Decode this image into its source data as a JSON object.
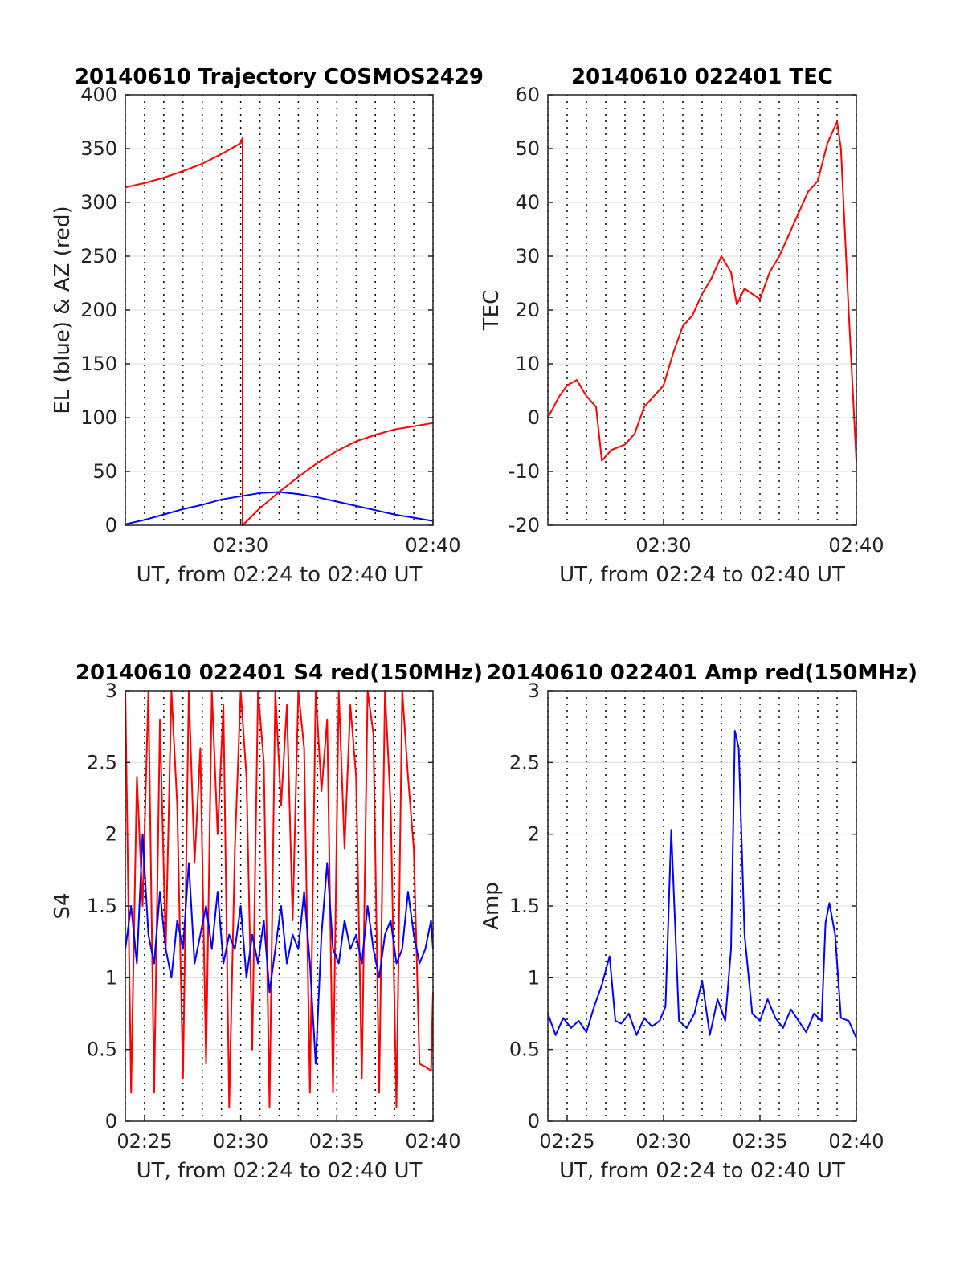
{
  "chart_data": [
    {
      "type": "line",
      "title": "20140610 Trajectory COSMOS2429",
      "xlabel": "UT, from 02:24 to 02:40 UT",
      "ylabel": "EL (blue) & AZ (red)",
      "x_unit": "minutes after 02:00 UT",
      "xlim": [
        24,
        40
      ],
      "ylim": [
        0,
        400
      ],
      "xtick_values": [
        30,
        40
      ],
      "xtick_labels": [
        "02:30",
        "02:40"
      ],
      "ytick_values": [
        0,
        50,
        100,
        150,
        200,
        250,
        300,
        350,
        400
      ],
      "ytick_labels": [
        "0",
        "50",
        "100",
        "150",
        "200",
        "250",
        "300",
        "350",
        "400"
      ],
      "grid": true,
      "series": [
        {
          "color": "#ff0000",
          "x": [
            24,
            25,
            26,
            27,
            28,
            29,
            30,
            30.1,
            30.1,
            31,
            32,
            33,
            34,
            35,
            36,
            37,
            38,
            39,
            40
          ],
          "y": [
            314,
            318,
            323,
            329,
            336,
            345,
            355,
            360,
            0,
            16,
            31,
            45,
            58,
            69,
            78,
            84,
            89,
            92,
            95
          ]
        },
        {
          "color": "#0000ff",
          "x": [
            24,
            25,
            26,
            27,
            28,
            29,
            30,
            31,
            32,
            33,
            34,
            35,
            36,
            37,
            38,
            39,
            40
          ],
          "y": [
            1,
            5,
            10,
            15,
            19,
            24,
            27,
            30,
            31,
            29,
            26,
            22,
            18,
            14,
            10,
            7,
            4
          ]
        }
      ]
    },
    {
      "type": "line",
      "title": "20140610 022401 TEC",
      "xlabel": "UT, from 02:24 to 02:40 UT",
      "ylabel": "TEC",
      "x_unit": "minutes after 02:00 UT",
      "xlim": [
        24,
        40
      ],
      "ylim": [
        -20,
        60
      ],
      "xtick_values": [
        30,
        40
      ],
      "xtick_labels": [
        "02:30",
        "02:40"
      ],
      "ytick_values": [
        -20,
        -10,
        0,
        10,
        20,
        30,
        40,
        50,
        60
      ],
      "ytick_labels": [
        "-20",
        "-10",
        "0",
        "10",
        "20",
        "30",
        "40",
        "50",
        "60"
      ],
      "grid": true,
      "series": [
        {
          "color": "#ff0000",
          "x": [
            24,
            24.3,
            24.6,
            25,
            25.5,
            26,
            26.5,
            26.8,
            27.3,
            28,
            28.5,
            29,
            29.5,
            30,
            30.5,
            31,
            31.5,
            32,
            32.5,
            33,
            33.5,
            33.8,
            34.2,
            34.6,
            35,
            35.5,
            36,
            36.5,
            37,
            37.5,
            38,
            38.5,
            39,
            39.2,
            39.6,
            40
          ],
          "y": [
            0,
            2,
            4,
            6,
            7,
            4,
            2,
            -8,
            -6,
            -5,
            -3,
            2,
            4,
            6,
            12,
            17,
            19,
            23,
            26,
            30,
            27,
            21,
            24,
            23,
            22,
            27,
            30,
            34,
            38,
            42,
            44,
            51,
            55,
            50,
            20,
            -8
          ]
        }
      ]
    },
    {
      "type": "line",
      "title": "20140610 022401 S4 red(150MHz)",
      "xlabel": "UT, from 02:24 to 02:40 UT",
      "ylabel": "S4",
      "x_unit": "minutes after 02:00 UT",
      "xlim": [
        24,
        40
      ],
      "ylim": [
        0,
        3
      ],
      "xtick_values": [
        25,
        30,
        35,
        40
      ],
      "xtick_labels": [
        "02:25",
        "02:30",
        "02:35",
        "02:40"
      ],
      "ytick_values": [
        0,
        0.5,
        1,
        1.5,
        2,
        2.5,
        3
      ],
      "ytick_labels": [
        "0",
        "0.5",
        "1",
        "1.5",
        "2",
        "2.5",
        "3"
      ],
      "grid": true,
      "series": [
        {
          "color": "#ff0000",
          "x": [
            24,
            24.3,
            24.6,
            24.9,
            25.2,
            25.5,
            25.8,
            26.1,
            26.4,
            26.7,
            27,
            27.3,
            27.6,
            27.9,
            28.2,
            28.5,
            28.8,
            29.1,
            29.4,
            29.7,
            30,
            30.3,
            30.6,
            30.9,
            31.2,
            31.5,
            31.8,
            32.1,
            32.4,
            32.7,
            33,
            33.3,
            33.6,
            33.9,
            34.2,
            34.5,
            34.8,
            35.1,
            35.4,
            35.7,
            36,
            36.3,
            36.6,
            36.9,
            37.2,
            37.5,
            37.8,
            38.1,
            38.4,
            38.7,
            39,
            39.3,
            39.6,
            39.9,
            40
          ],
          "y": [
            3.0,
            0.2,
            2.4,
            1.5,
            3.0,
            0.2,
            2.8,
            1.2,
            3.0,
            2.2,
            0.3,
            3.0,
            1.8,
            2.6,
            0.4,
            3.0,
            2.0,
            2.9,
            0.1,
            1.9,
            3.0,
            2.4,
            0.5,
            3.0,
            2.5,
            0.1,
            3.0,
            2.2,
            2.9,
            1.4,
            3.0,
            2.6,
            0.2,
            3.0,
            2.3,
            2.8,
            0.2,
            3.0,
            1.9,
            2.9,
            2.4,
            0.3,
            3.0,
            2.7,
            0.2,
            3.0,
            2.2,
            0.1,
            3.0,
            2.4,
            1.9,
            0.4,
            0.38,
            0.35,
            0.9
          ]
        },
        {
          "color": "#0000ff",
          "x": [
            24,
            24.3,
            24.6,
            24.9,
            25.2,
            25.5,
            25.8,
            26.1,
            26.4,
            26.7,
            27,
            27.3,
            27.6,
            27.9,
            28.2,
            28.5,
            28.8,
            29.1,
            29.4,
            29.7,
            30,
            30.3,
            30.6,
            30.9,
            31.2,
            31.5,
            31.8,
            32.1,
            32.4,
            32.7,
            33,
            33.3,
            33.6,
            33.9,
            34.2,
            34.5,
            34.8,
            35.1,
            35.4,
            35.7,
            36,
            36.3,
            36.6,
            36.9,
            37.2,
            37.5,
            37.8,
            38.1,
            38.4,
            38.7,
            39,
            39.3,
            39.6,
            39.9,
            40
          ],
          "y": [
            1.2,
            1.5,
            1.1,
            2.0,
            1.3,
            1.1,
            1.6,
            1.2,
            1.0,
            1.4,
            1.2,
            1.8,
            1.1,
            1.3,
            1.5,
            1.2,
            1.6,
            1.1,
            1.3,
            1.2,
            1.5,
            1.0,
            1.3,
            1.1,
            1.4,
            0.9,
            1.2,
            1.5,
            1.1,
            1.3,
            1.2,
            1.6,
            1.1,
            0.4,
            1.3,
            1.8,
            1.2,
            1.1,
            1.4,
            1.2,
            1.3,
            1.1,
            1.5,
            1.2,
            1.0,
            1.3,
            1.4,
            1.1,
            1.2,
            1.6,
            1.3,
            1.1,
            1.2,
            1.4,
            1.2
          ]
        }
      ]
    },
    {
      "type": "line",
      "title": "20140610 022401 Amp red(150MHz)",
      "xlabel": "UT, from 02:24 to 02:40 UT",
      "ylabel": "Amp",
      "x_unit": "minutes after 02:00 UT",
      "xlim": [
        24,
        40
      ],
      "ylim": [
        0,
        3
      ],
      "xtick_values": [
        25,
        30,
        35,
        40
      ],
      "xtick_labels": [
        "02:25",
        "02:30",
        "02:35",
        "02:40"
      ],
      "ytick_values": [
        0,
        0.5,
        1,
        1.5,
        2,
        2.5,
        3
      ],
      "ytick_labels": [
        "0",
        "0.5",
        "1",
        "1.5",
        "2",
        "2.5",
        "3"
      ],
      "grid": true,
      "series": [
        {
          "color": "#0000ff",
          "x": [
            24,
            24.4,
            24.8,
            25.2,
            25.6,
            26,
            26.4,
            26.8,
            27.2,
            27.5,
            27.8,
            28.2,
            28.6,
            29,
            29.4,
            29.8,
            30.1,
            30.4,
            30.8,
            31.2,
            31.6,
            32,
            32.4,
            32.8,
            33.2,
            33.5,
            33.7,
            33.9,
            34.2,
            34.6,
            35,
            35.4,
            35.8,
            36.2,
            36.6,
            37,
            37.4,
            37.8,
            38.2,
            38.4,
            38.6,
            38.9,
            39.2,
            39.6,
            40
          ],
          "y": [
            0.75,
            0.6,
            0.72,
            0.65,
            0.7,
            0.62,
            0.8,
            0.95,
            1.15,
            0.7,
            0.68,
            0.75,
            0.6,
            0.72,
            0.66,
            0.7,
            0.8,
            2.03,
            0.7,
            0.65,
            0.75,
            0.98,
            0.6,
            0.85,
            0.7,
            1.2,
            2.72,
            2.6,
            1.3,
            0.75,
            0.7,
            0.85,
            0.72,
            0.65,
            0.78,
            0.7,
            0.62,
            0.75,
            0.7,
            1.38,
            1.52,
            1.3,
            0.72,
            0.7,
            0.58
          ]
        }
      ]
    }
  ]
}
